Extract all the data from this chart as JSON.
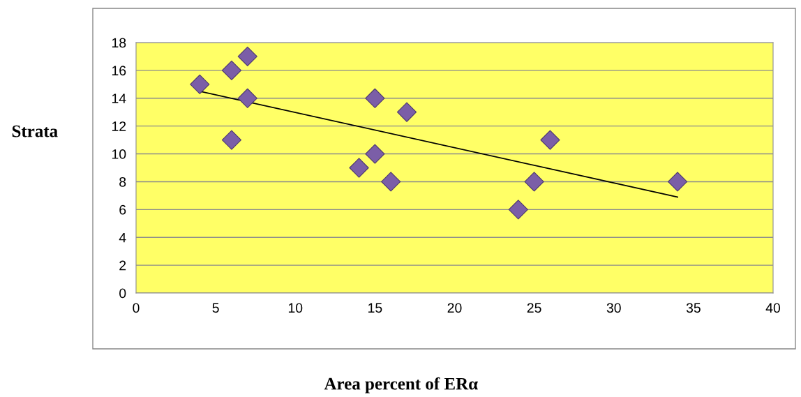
{
  "chart_data": {
    "type": "scatter",
    "xlabel": "Area percent of ERα",
    "ylabel": "Strata",
    "xlim": [
      0,
      40
    ],
    "xticks": [
      0,
      5,
      10,
      15,
      20,
      25,
      30,
      35,
      40
    ],
    "ylim": [
      0,
      18
    ],
    "yticks": [
      0,
      2,
      4,
      6,
      8,
      10,
      12,
      14,
      16,
      18
    ],
    "grid": "y",
    "legend": false,
    "series": [
      {
        "marker": "diamond",
        "color": "#7b5ea7",
        "x": [
          4,
          6,
          7,
          7,
          6,
          15,
          17,
          14,
          15,
          16,
          24,
          25,
          26,
          34
        ],
        "values": [
          15,
          16,
          17,
          14,
          11,
          14,
          13,
          9,
          10,
          8,
          6,
          8,
          11,
          8
        ]
      },
      {
        "type": "line",
        "color": "#000000",
        "x": [
          4,
          34
        ],
        "values": [
          14.5,
          6.9
        ]
      }
    ]
  }
}
